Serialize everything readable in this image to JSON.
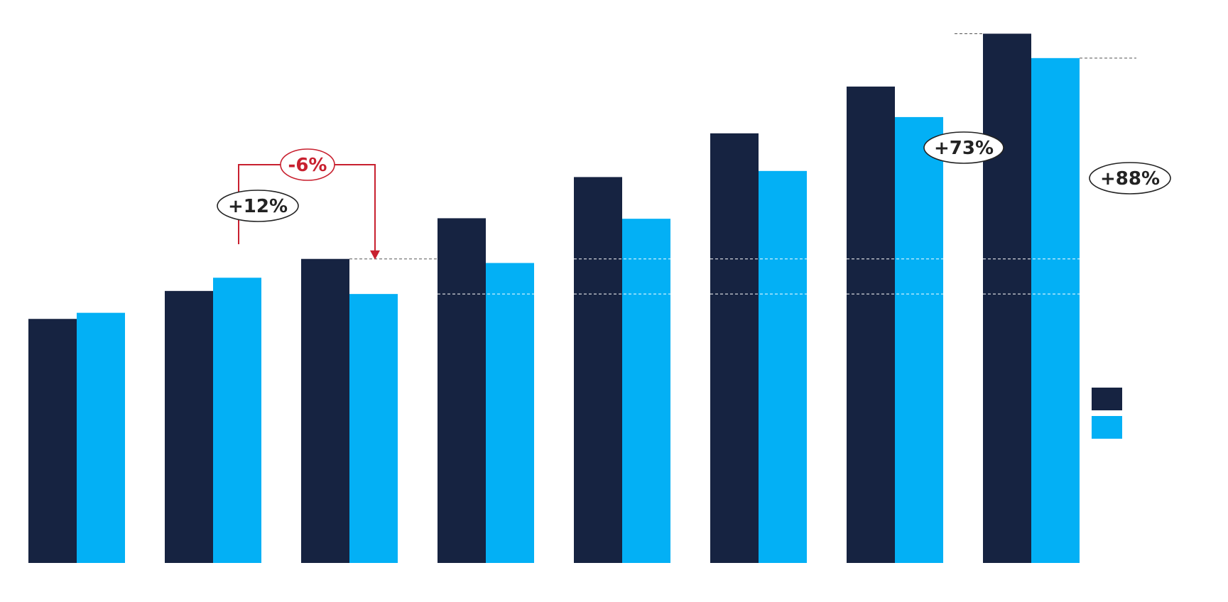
{
  "chart_data": {
    "type": "bar",
    "categories": [
      "",
      "",
      "",
      "",
      "",
      "",
      "",
      ""
    ],
    "series": [
      {
        "color": "#162341",
        "values": [
          48.0,
          53.5,
          59.8,
          67.8,
          75.9,
          84.5,
          93.7,
          104.1
        ]
      },
      {
        "color": "#03b0f5",
        "values": [
          49.2,
          56.1,
          52.9,
          59.0,
          67.7,
          77.1,
          87.7,
          99.3
        ]
      }
    ],
    "ylim": [
      0,
      105
    ],
    "grid": false,
    "legend": {
      "position": "right",
      "entries": [
        "",
        ""
      ]
    },
    "annotations": [
      {
        "text": "+12%",
        "kind": "change",
        "style": "dark"
      },
      {
        "text": "-6%",
        "kind": "change",
        "style": "red"
      },
      {
        "text": "+73%",
        "kind": "change",
        "style": "dark"
      },
      {
        "text": "+88%",
        "kind": "change",
        "style": "dark"
      }
    ]
  },
  "colors": {
    "dark": "#162341",
    "light": "#03b0f5",
    "red": "#c8202f",
    "annotation_text": "#222222"
  }
}
